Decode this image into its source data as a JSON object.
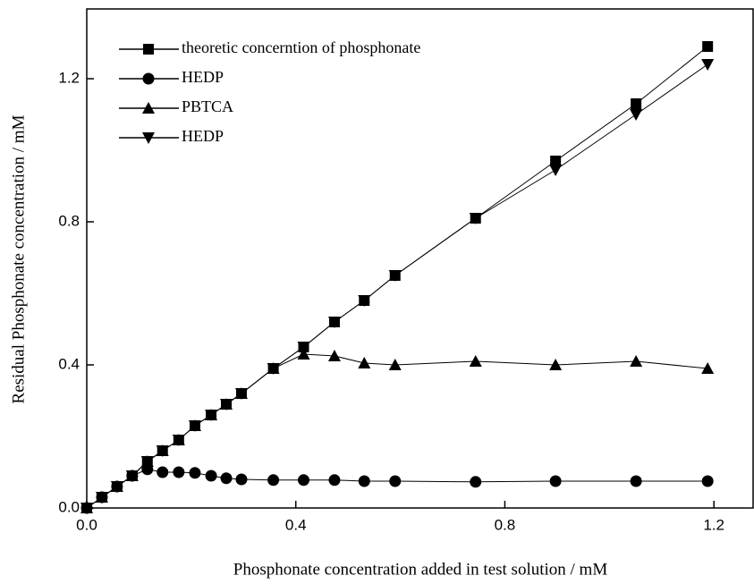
{
  "chart_data": {
    "type": "line",
    "xlabel": "Phosphonate concentration added  in test solution  / mM",
    "ylabel": "Residual Phosphonate concentration  / mM",
    "xlim": [
      0,
      1.275
    ],
    "ylim": [
      0,
      1.395
    ],
    "xticks": [
      {
        "value": 0,
        "label": "0.0"
      },
      0.4,
      0.8,
      1.2
    ],
    "yticks": [
      {
        "value": 0,
        "label": "0.0"
      },
      0.4,
      0.8,
      1.2
    ],
    "x": [
      0,
      0.029,
      0.058,
      0.087,
      0.116,
      0.145,
      0.176,
      0.207,
      0.238,
      0.267,
      0.296,
      0.357,
      0.415,
      0.474,
      0.531,
      0.59,
      0.744,
      0.897,
      1.051,
      1.188
    ],
    "legend": "upper left",
    "series": [
      {
        "name": "theoretic concerntion of phosphonate",
        "marker": "square",
        "color": "#000000",
        "values": [
          0,
          0.03,
          0.06,
          0.09,
          0.13,
          0.16,
          0.19,
          0.23,
          0.26,
          0.29,
          0.32,
          0.39,
          0.45,
          0.52,
          0.58,
          0.65,
          0.81,
          0.97,
          1.13,
          1.29
        ]
      },
      {
        "name": "HEDP",
        "marker": "circle",
        "color": "#000000",
        "values": [
          0,
          0.03,
          0.06,
          0.09,
          0.108,
          0.1,
          0.1,
          0.098,
          0.09,
          0.083,
          0.08,
          0.078,
          0.078,
          0.078,
          0.075,
          0.075,
          0.073,
          0.075,
          0.075,
          0.075
        ]
      },
      {
        "name": "PBTCA",
        "marker": "triangle-up",
        "color": "#000000",
        "values": [
          0,
          0.03,
          0.06,
          0.09,
          0.13,
          0.16,
          0.19,
          0.23,
          0.26,
          0.29,
          0.32,
          0.39,
          0.43,
          0.425,
          0.405,
          0.4,
          0.41,
          0.4,
          0.41,
          0.39
        ]
      },
      {
        "name": "HEDP",
        "marker": "triangle-down",
        "color": "#000000",
        "values": [
          0,
          0.03,
          0.06,
          0.09,
          0.13,
          0.16,
          0.19,
          0.23,
          0.26,
          0.29,
          0.32,
          0.39,
          0.45,
          0.52,
          0.58,
          0.65,
          0.81,
          0.945,
          1.1,
          1.24
        ]
      }
    ]
  }
}
